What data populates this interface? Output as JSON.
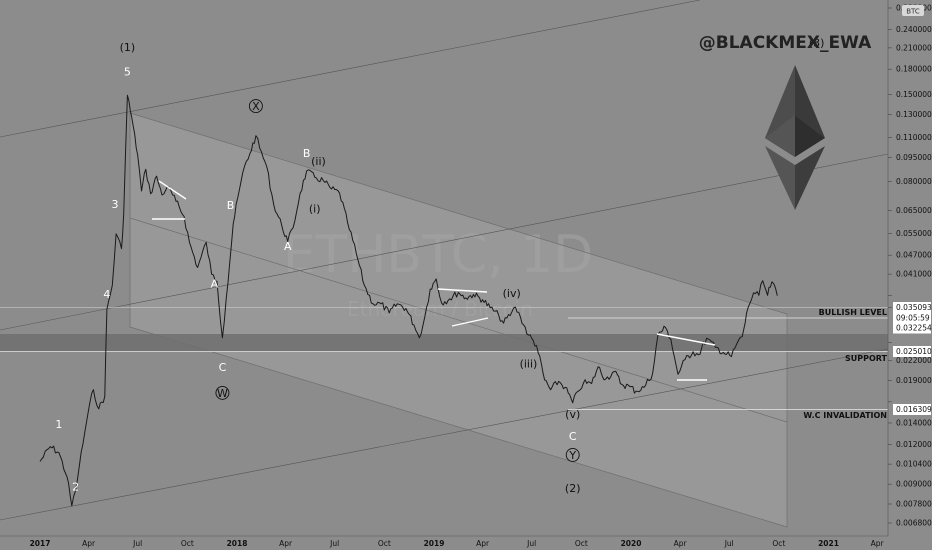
{
  "chart_data": {
    "type": "line",
    "handle": "@BLACKMEX_EWA",
    "watermark_symbol": "ETHBTC, 1D",
    "watermark_name": "Ethereum / Bitcoin",
    "currency_badge": "BTC",
    "y_axis": {
      "scale": "log",
      "ticks": [
        "0.280000",
        "0.240000",
        "0.210000",
        "0.180000",
        "0.150000",
        "0.130000",
        "0.110000",
        "0.095000",
        "0.080000",
        "0.065000",
        "0.055000",
        "0.047000",
        "0.041000",
        "0.035093",
        "0.032254",
        "0.025010",
        "0.022000",
        "0.019000",
        "0.016309",
        "0.014000",
        "0.012000",
        "0.010400",
        "0.009000",
        "0.007800",
        "0.006800"
      ]
    },
    "x_axis": {
      "ticks": [
        "2017",
        "Apr",
        "Jul",
        "Oct",
        "2018",
        "Apr",
        "Jul",
        "Oct",
        "2019",
        "Apr",
        "Jul",
        "Oct",
        "2020",
        "Apr",
        "Jul",
        "Oct",
        "2021",
        "Apr"
      ]
    },
    "price_labels": [
      {
        "value": "0.035093",
        "color": "#ffffff",
        "text_color": "#111"
      },
      {
        "value": "09:05:59",
        "color": "#ffffff",
        "text_color": "#111"
      },
      {
        "value": "0.032254",
        "color": "#ffffff",
        "text_color": "#111"
      },
      {
        "value": "0.025010",
        "color": "#ffffff",
        "text_color": "#111"
      },
      {
        "value": "0.016309",
        "color": "#ffffff",
        "text_color": "#111"
      }
    ],
    "levels": [
      {
        "name": "BULLISH LEVEL",
        "price": 0.03228
      },
      {
        "name": "SUPPORT",
        "price": 0.025
      },
      {
        "name": "W.C INVALIDATION",
        "price": 0.0163
      }
    ],
    "series": [
      {
        "points": [
          [
            "2017-01-01",
            0.0106
          ],
          [
            "2017-01-20",
            0.0118
          ],
          [
            "2017-02-05",
            0.0113
          ],
          [
            "2017-02-20",
            0.0095
          ],
          [
            "2017-03-01",
            0.0077
          ],
          [
            "2017-03-08",
            0.0086
          ],
          [
            "2017-03-15",
            0.0103
          ],
          [
            "2017-03-25",
            0.0131
          ],
          [
            "2017-04-01",
            0.0154
          ],
          [
            "2017-04-10",
            0.0178
          ],
          [
            "2017-04-20",
            0.0155
          ],
          [
            "2017-05-01",
            0.017
          ],
          [
            "2017-05-05",
            0.0318
          ],
          [
            "2017-05-15",
            0.0378
          ],
          [
            "2017-05-22",
            0.0548
          ],
          [
            "2017-06-01",
            0.0493
          ],
          [
            "2017-06-05",
            0.0634
          ],
          [
            "2017-06-12",
            0.1491
          ],
          [
            "2017-06-20",
            0.1268
          ],
          [
            "2017-07-01",
            0.0967
          ],
          [
            "2017-07-08",
            0.0747
          ],
          [
            "2017-07-16",
            0.0874
          ],
          [
            "2017-07-25",
            0.0732
          ],
          [
            "2017-08-05",
            0.0832
          ],
          [
            "2017-08-15",
            0.0726
          ],
          [
            "2017-08-25",
            0.0772
          ],
          [
            "2017-09-10",
            0.0694
          ],
          [
            "2017-09-25",
            0.0622
          ],
          [
            "2017-10-05",
            0.0515
          ],
          [
            "2017-10-20",
            0.043
          ],
          [
            "2017-11-05",
            0.0516
          ],
          [
            "2017-11-15",
            0.041
          ],
          [
            "2017-11-25",
            0.0389
          ],
          [
            "2017-12-05",
            0.0259
          ],
          [
            "2017-12-12",
            0.0343
          ],
          [
            "2017-12-25",
            0.0589
          ],
          [
            "2018-01-05",
            0.0748
          ],
          [
            "2018-01-15",
            0.0894
          ],
          [
            "2018-01-25",
            0.098
          ],
          [
            "2018-02-05",
            0.1114
          ],
          [
            "2018-02-12",
            0.1018
          ],
          [
            "2018-02-25",
            0.0892
          ],
          [
            "2018-03-10",
            0.0678
          ],
          [
            "2018-03-25",
            0.0581
          ],
          [
            "2018-04-05",
            0.0519
          ],
          [
            "2018-04-15",
            0.0573
          ],
          [
            "2018-04-28",
            0.0735
          ],
          [
            "2018-05-10",
            0.0863
          ],
          [
            "2018-05-25",
            0.0826
          ],
          [
            "2018-06-10",
            0.0804
          ],
          [
            "2018-06-25",
            0.0758
          ],
          [
            "2018-07-10",
            0.0737
          ],
          [
            "2018-07-25",
            0.0594
          ],
          [
            "2018-08-10",
            0.0476
          ],
          [
            "2018-08-25",
            0.0378
          ],
          [
            "2018-09-10",
            0.0331
          ],
          [
            "2018-09-25",
            0.0331
          ],
          [
            "2018-10-10",
            0.031
          ],
          [
            "2018-10-25",
            0.0331
          ],
          [
            "2018-11-10",
            0.032
          ],
          [
            "2018-11-25",
            0.0284
          ],
          [
            "2018-12-05",
            0.0259
          ],
          [
            "2018-12-15",
            0.0301
          ],
          [
            "2018-12-25",
            0.0368
          ],
          [
            "2019-01-05",
            0.0396
          ],
          [
            "2019-01-15",
            0.0333
          ],
          [
            "2019-01-30",
            0.0343
          ],
          [
            "2019-02-15",
            0.0359
          ],
          [
            "2019-03-01",
            0.0345
          ],
          [
            "2019-03-15",
            0.0354
          ],
          [
            "2019-04-01",
            0.0341
          ],
          [
            "2019-04-15",
            0.0322
          ],
          [
            "2019-05-01",
            0.0304
          ],
          [
            "2019-05-10",
            0.0288
          ],
          [
            "2019-05-25",
            0.0311
          ],
          [
            "2019-06-01",
            0.0323
          ],
          [
            "2019-06-10",
            0.0301
          ],
          [
            "2019-06-25",
            0.0264
          ],
          [
            "2019-07-10",
            0.0245
          ],
          [
            "2019-07-25",
            0.0191
          ],
          [
            "2019-08-05",
            0.0178
          ],
          [
            "2019-08-20",
            0.0189
          ],
          [
            "2019-09-01",
            0.0181
          ],
          [
            "2019-09-15",
            0.0162
          ],
          [
            "2019-09-25",
            0.0176
          ],
          [
            "2019-10-05",
            0.0187
          ],
          [
            "2019-10-20",
            0.0186
          ],
          [
            "2019-11-01",
            0.021
          ],
          [
            "2019-11-15",
            0.0192
          ],
          [
            "2019-12-01",
            0.0203
          ],
          [
            "2019-12-15",
            0.0185
          ],
          [
            "2019-12-30",
            0.0182
          ],
          [
            "2020-01-10",
            0.0176
          ],
          [
            "2020-01-25",
            0.0181
          ],
          [
            "2020-02-10",
            0.02
          ],
          [
            "2020-02-20",
            0.0265
          ],
          [
            "2020-03-05",
            0.0279
          ],
          [
            "2020-03-15",
            0.0256
          ],
          [
            "2020-03-28",
            0.0199
          ],
          [
            "2020-04-10",
            0.0221
          ],
          [
            "2020-04-25",
            0.0234
          ],
          [
            "2020-05-05",
            0.0229
          ],
          [
            "2020-05-20",
            0.0258
          ],
          [
            "2020-06-05",
            0.0242
          ],
          [
            "2020-06-20",
            0.0233
          ],
          [
            "2020-07-05",
            0.0226
          ],
          [
            "2020-07-15",
            0.0248
          ],
          [
            "2020-07-25",
            0.0261
          ],
          [
            "2020-08-05",
            0.0322
          ],
          [
            "2020-08-15",
            0.0358
          ],
          [
            "2020-08-25",
            0.0352
          ],
          [
            "2020-09-01",
            0.0391
          ],
          [
            "2020-09-10",
            0.0352
          ],
          [
            "2020-09-18",
            0.0388
          ],
          [
            "2020-09-28",
            0.0351
          ]
        ]
      }
    ],
    "wave_labels": [
      {
        "text": "(1)",
        "date": "2017-06-12",
        "price": 0.205,
        "color": "#111"
      },
      {
        "text": "5",
        "date": "2017-06-12",
        "price": 0.172,
        "color": "#fff"
      },
      {
        "text": "4",
        "date": "2017-05-05",
        "price": 0.0345,
        "color": "#fff"
      },
      {
        "text": "3",
        "date": "2017-05-20",
        "price": 0.066,
        "color": "#fff"
      },
      {
        "text": "2",
        "date": "2017-03-08",
        "price": 0.0086,
        "color": "#fff"
      },
      {
        "text": "1",
        "date": "2017-02-05",
        "price": 0.0135,
        "color": "#fff"
      },
      {
        "text": "A",
        "date": "2017-11-20",
        "price": 0.0372,
        "color": "#fff"
      },
      {
        "text": "B",
        "date": "2017-12-20",
        "price": 0.0655,
        "color": "#fff"
      },
      {
        "text": "C",
        "date": "2017-12-05",
        "price": 0.0204,
        "color": "#fff"
      },
      {
        "text": "W",
        "date": "2017-12-05",
        "price": 0.0169,
        "color": "#111",
        "circle": true
      },
      {
        "text": "X",
        "date": "2018-02-05",
        "price": 0.134,
        "color": "#111",
        "circle": true
      },
      {
        "text": "A",
        "date": "2018-04-05",
        "price": 0.0488,
        "color": "#fff"
      },
      {
        "text": "B",
        "date": "2018-05-10",
        "price": 0.0955,
        "color": "#fff"
      },
      {
        "text": "(ii)",
        "date": "2018-06-01",
        "price": 0.09,
        "color": "#111"
      },
      {
        "text": "(i)",
        "date": "2018-05-25",
        "price": 0.064,
        "color": "#111"
      },
      {
        "text": "(iii)",
        "date": "2019-06-25",
        "price": 0.0209,
        "color": "#111"
      },
      {
        "text": "(iv)",
        "date": "2019-05-25",
        "price": 0.0348,
        "color": "#111"
      },
      {
        "text": "(v)",
        "date": "2019-09-15",
        "price": 0.0145,
        "color": "#111"
      },
      {
        "text": "C",
        "date": "2019-09-15",
        "price": 0.0124,
        "color": "#fff"
      },
      {
        "text": "Y",
        "date": "2019-09-15",
        "price": 0.0108,
        "color": "#111",
        "circle": true
      },
      {
        "text": "(2)",
        "date": "2019-09-15",
        "price": 0.0085,
        "color": "#111"
      },
      {
        "text": "(3)",
        "date": "2020-12-10",
        "price": 0.212,
        "color": "#111"
      }
    ]
  }
}
